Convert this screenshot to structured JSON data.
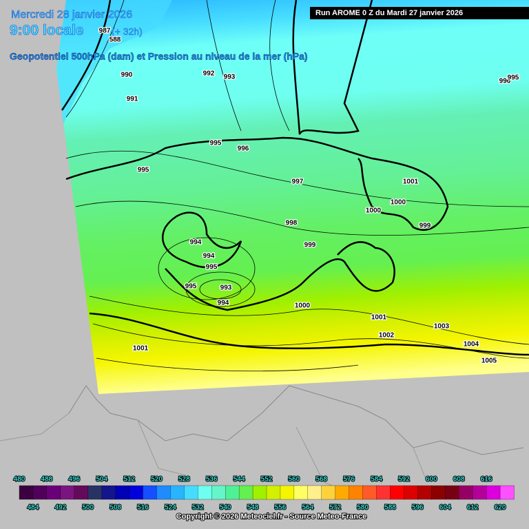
{
  "header": {
    "date": "Mercredi 28 janvier 2026",
    "time": "9:00 locale",
    "lead": "(+ 32h)",
    "field": "Geopotentiel 500hPa (dam) et Pression au niveau de la mer (hPa)",
    "run": "Run AROME 0 Z du Mardi 27 janvier 2026"
  },
  "isobar_labels": [
    987,
    588,
    990,
    991,
    992,
    993,
    996,
    995,
    995,
    996,
    995,
    997,
    1001,
    1000,
    1000,
    998,
    999,
    994,
    999,
    994,
    995,
    995,
    993,
    994,
    1000,
    1001,
    1003,
    1002,
    1004,
    1001,
    1005
  ],
  "legend": {
    "labels": [
      480,
      484,
      488,
      492,
      496,
      500,
      504,
      508,
      512,
      516,
      520,
      524,
      528,
      532,
      536,
      540,
      544,
      548,
      552,
      556,
      560,
      564,
      568,
      572,
      576,
      580,
      584,
      588,
      592,
      596,
      600,
      604,
      608,
      612,
      616,
      620
    ],
    "colors": [
      "#3c0040",
      "#50005a",
      "#6a0078",
      "#7a1480",
      "#640a5a",
      "#283264",
      "#14148c",
      "#0000b4",
      "#0000dc",
      "#1450ff",
      "#1e8cff",
      "#28b4ff",
      "#46dcff",
      "#6efff0",
      "#64f5c8",
      "#50f096",
      "#64f050",
      "#a0f000",
      "#d2f000",
      "#f5f500",
      "#ffff64",
      "#fff08c",
      "#ffd23c",
      "#ffaa00",
      "#ff8200",
      "#ff5a28",
      "#ff3232",
      "#ff0000",
      "#dc0000",
      "#b40000",
      "#8c0000",
      "#780014",
      "#960064",
      "#b4009a",
      "#dc00dc",
      "#ff50ff"
    ]
  },
  "footer": "Copyright © 2026 Meteociel.fr - Source Meteo-France"
}
